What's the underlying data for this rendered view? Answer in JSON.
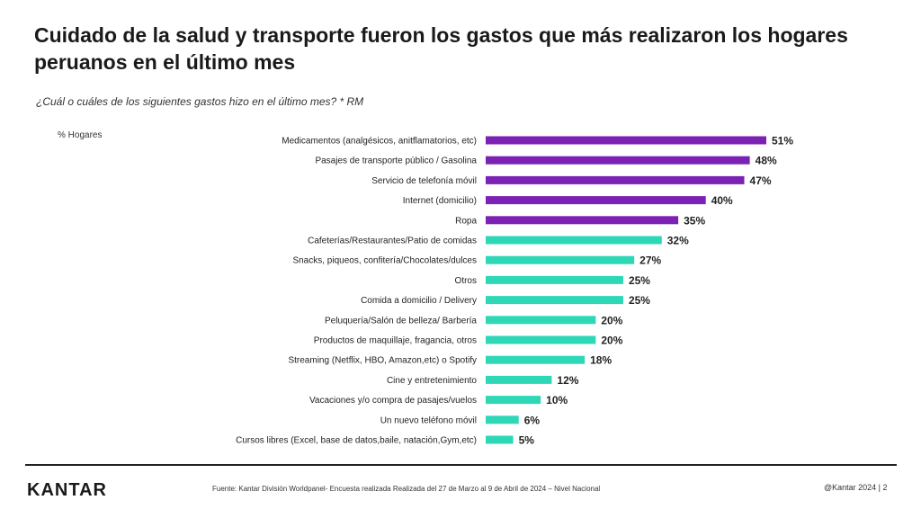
{
  "header": {
    "title": "Cuidado de la salud y transporte fueron los gastos que más realizaron los hogares peruanos en el último mes",
    "question": "¿Cuál o cuáles de los siguientes gastos hizo en el último mes? * RM",
    "unit_label": "% Hogares"
  },
  "chart_data": {
    "type": "bar",
    "orientation": "horizontal",
    "categories": [
      "Medicamentos (analgésicos, anitflamatorios, etc)",
      "Pasajes de transporte público / Gasolina",
      "Servicio de telefonía móvil",
      "Internet (domicilio)",
      "Ropa",
      "Cafeterías/Restaurantes/Patio de comidas",
      "Snacks, piqueos, confitería/Chocolates/dulces",
      "Otros",
      "Comida a domicilio / Delivery",
      "Peluquería/Salón de belleza/ Barbería",
      "Productos de maquillaje, fragancia, otros",
      "Streaming (Netflix, HBO, Amazon,etc) o Spotify",
      "Cine y entretenimiento",
      "Vacaciones y/o compra de pasajes/vuelos",
      "Un nuevo teléfono móvil",
      "Cursos libres (Excel, base de datos,baile, natación,Gym,etc)"
    ],
    "values": [
      51,
      48,
      47,
      40,
      35,
      32,
      27,
      25,
      25,
      20,
      20,
      18,
      12,
      10,
      6,
      5
    ],
    "value_labels": [
      "51%",
      "48%",
      "47%",
      "40%",
      "35%",
      "32%",
      "27%",
      "25%",
      "25%",
      "20%",
      "20%",
      "18%",
      "12%",
      "10%",
      "6%",
      "5%"
    ],
    "highlight_count": 5,
    "colors": {
      "highlight": "#7B22B4",
      "normal": "#2ED8B6"
    },
    "xlim": [
      0,
      51
    ],
    "grid": false,
    "legend": "none"
  },
  "footer": {
    "logo": "KANTAR",
    "source": "Fuente: Kantar División Worldpanel- Encuesta realizada Realizada del 27 de Marzo al 9 de Abril de 2024 – Nivel Nacional",
    "copyright": "@Kantar 2024 | 2"
  }
}
